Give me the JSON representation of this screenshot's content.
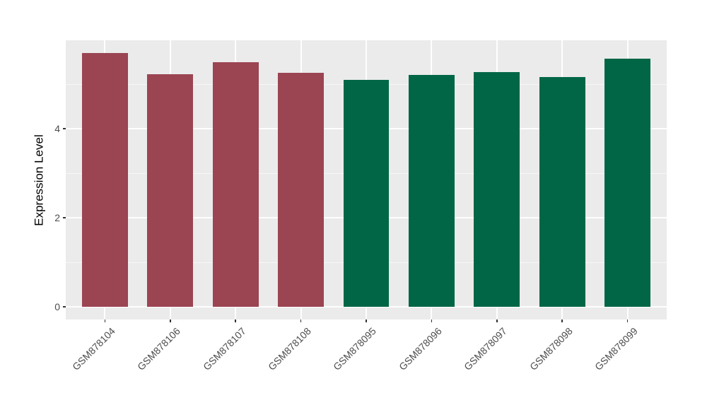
{
  "chart_data": {
    "type": "bar",
    "title": "",
    "xlabel": "",
    "ylabel": "Expression Level",
    "categories": [
      "GSM878104",
      "GSM878106",
      "GSM878107",
      "GSM878108",
      "GSM878095",
      "GSM878096",
      "GSM878097",
      "GSM878098",
      "GSM878099"
    ],
    "values": [
      5.7,
      5.22,
      5.49,
      5.26,
      5.1,
      5.21,
      5.27,
      5.16,
      5.58
    ],
    "bar_colors": [
      "#9B4452",
      "#9B4452",
      "#9B4452",
      "#9B4452",
      "#006646",
      "#006646",
      "#006646",
      "#006646",
      "#006646"
    ],
    "y_ticks": [
      0,
      2,
      4
    ],
    "y_minor_ticks": [
      1,
      3,
      5
    ],
    "ylim": [
      0,
      5.99
    ],
    "grid": "on",
    "legend_position": "none",
    "style": {
      "panel_bg": "#EBEBEB",
      "grid_color": "#FFFFFF",
      "tick_label_color": "#4D4D4D",
      "tick_mark_color": "#333333",
      "axis_title_color": "#000000",
      "page_bg": "#FFFFFF"
    }
  }
}
